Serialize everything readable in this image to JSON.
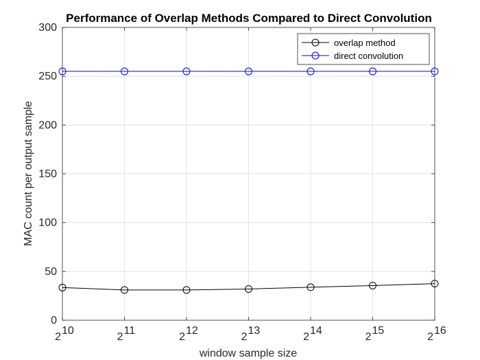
{
  "chart_data": {
    "type": "line",
    "title": "Performance of Overlap Methods Compared to Direct Convolution",
    "xlabel": "window sample size",
    "ylabel": "MAC count per output sample",
    "x_scale": "log2",
    "x": [
      1024,
      2048,
      4096,
      8192,
      16384,
      32768,
      65536
    ],
    "x_tick_labels": [
      {
        "base": "2",
        "exp": "10"
      },
      {
        "base": "2",
        "exp": "11"
      },
      {
        "base": "2",
        "exp": "12"
      },
      {
        "base": "2",
        "exp": "13"
      },
      {
        "base": "2",
        "exp": "14"
      },
      {
        "base": "2",
        "exp": "15"
      },
      {
        "base": "2",
        "exp": "16"
      }
    ],
    "xlim": [
      1024,
      65536
    ],
    "ylim": [
      0,
      300
    ],
    "y_ticks": [
      0,
      50,
      100,
      150,
      200,
      250,
      300
    ],
    "grid": true,
    "legend_location": "top-right",
    "series": [
      {
        "name": "overlap method",
        "color": "#000000",
        "marker": "circle",
        "values": [
          33.5,
          31,
          31,
          32,
          33.8,
          35.5,
          37.5
        ]
      },
      {
        "name": "direct convolution",
        "color": "#0000ff",
        "marker": "circle",
        "values": [
          255,
          255,
          255,
          255,
          255,
          255,
          255
        ]
      }
    ]
  }
}
